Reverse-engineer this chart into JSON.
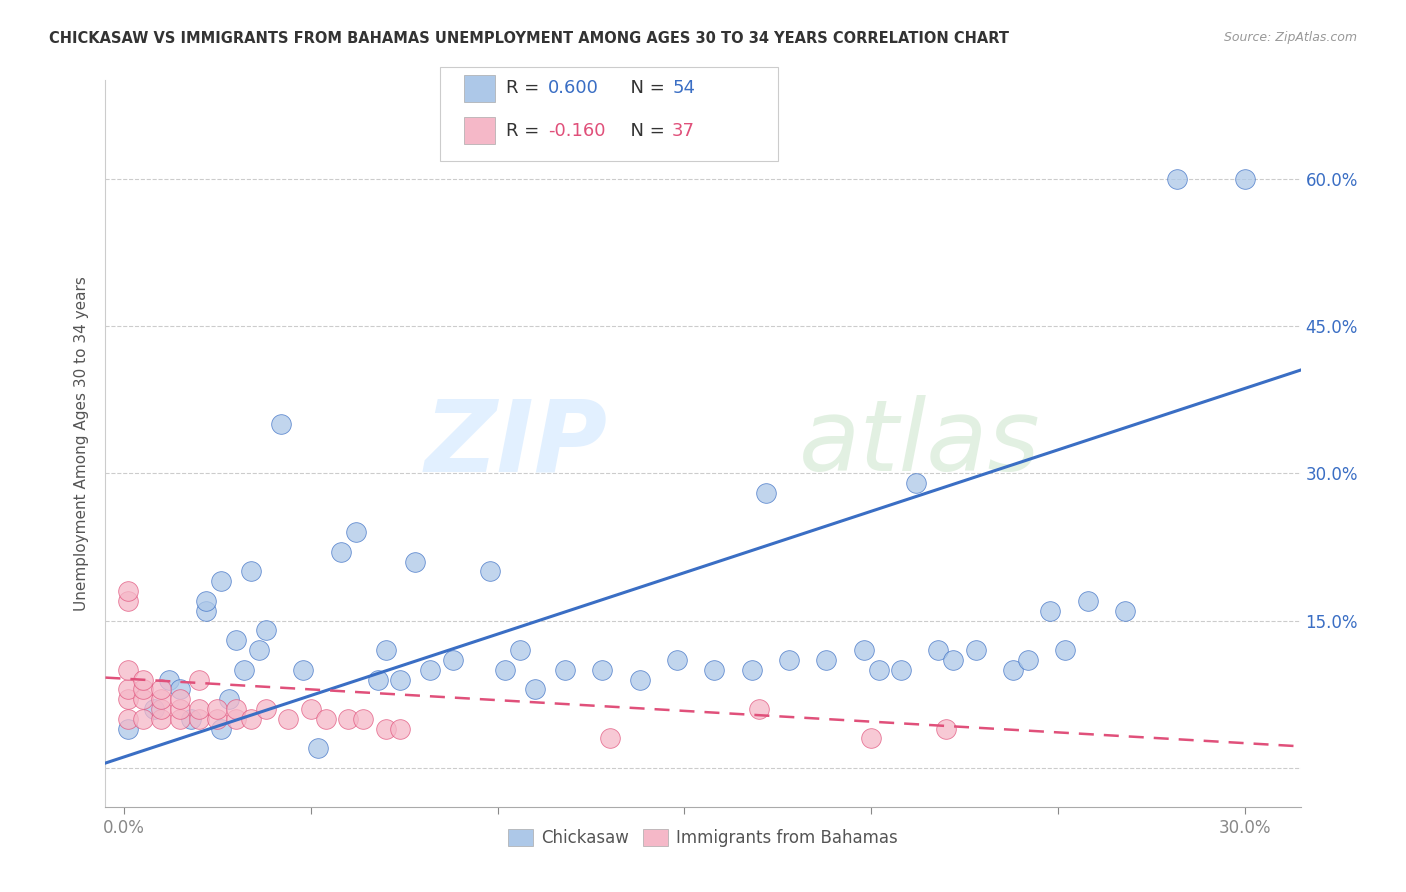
{
  "title": "CHICKASAW VS IMMIGRANTS FROM BAHAMAS UNEMPLOYMENT AMONG AGES 30 TO 34 YEARS CORRELATION CHART",
  "source": "Source: ZipAtlas.com",
  "ylabel": "Unemployment Among Ages 30 to 34 years",
  "xlim": [
    -0.005,
    0.315
  ],
  "ylim": [
    -0.04,
    0.7
  ],
  "blue_R": "0.600",
  "blue_N": "54",
  "pink_R": "-0.160",
  "pink_N": "37",
  "blue_color": "#adc8e8",
  "pink_color": "#f5b8c8",
  "blue_line_color": "#3a6ec4",
  "pink_line_color": "#e0507a",
  "legend_blue_label": "Chickasaw",
  "legend_pink_label": "Immigrants from Bahamas",
  "blue_scatter_x": [
    0.001,
    0.008,
    0.012,
    0.015,
    0.018,
    0.022,
    0.022,
    0.026,
    0.026,
    0.028,
    0.03,
    0.032,
    0.034,
    0.036,
    0.038,
    0.042,
    0.048,
    0.052,
    0.058,
    0.062,
    0.068,
    0.07,
    0.074,
    0.078,
    0.082,
    0.088,
    0.098,
    0.102,
    0.106,
    0.11,
    0.118,
    0.128,
    0.138,
    0.148,
    0.158,
    0.168,
    0.172,
    0.178,
    0.188,
    0.198,
    0.202,
    0.208,
    0.212,
    0.218,
    0.222,
    0.228,
    0.238,
    0.242,
    0.248,
    0.252,
    0.258,
    0.268,
    0.282,
    0.3
  ],
  "blue_scatter_y": [
    0.04,
    0.06,
    0.09,
    0.08,
    0.05,
    0.16,
    0.17,
    0.19,
    0.04,
    0.07,
    0.13,
    0.1,
    0.2,
    0.12,
    0.14,
    0.35,
    0.1,
    0.02,
    0.22,
    0.24,
    0.09,
    0.12,
    0.09,
    0.21,
    0.1,
    0.11,
    0.2,
    0.1,
    0.12,
    0.08,
    0.1,
    0.1,
    0.09,
    0.11,
    0.1,
    0.1,
    0.28,
    0.11,
    0.11,
    0.12,
    0.1,
    0.1,
    0.29,
    0.12,
    0.11,
    0.12,
    0.1,
    0.11,
    0.16,
    0.12,
    0.17,
    0.16,
    0.6,
    0.6
  ],
  "pink_scatter_x": [
    0.001,
    0.001,
    0.001,
    0.001,
    0.001,
    0.001,
    0.005,
    0.005,
    0.005,
    0.005,
    0.01,
    0.01,
    0.01,
    0.01,
    0.015,
    0.015,
    0.015,
    0.02,
    0.02,
    0.02,
    0.025,
    0.025,
    0.03,
    0.03,
    0.034,
    0.038,
    0.044,
    0.05,
    0.054,
    0.06,
    0.064,
    0.07,
    0.074,
    0.13,
    0.17,
    0.2,
    0.22
  ],
  "pink_scatter_y": [
    0.05,
    0.07,
    0.08,
    0.1,
    0.17,
    0.18,
    0.05,
    0.07,
    0.08,
    0.09,
    0.05,
    0.06,
    0.07,
    0.08,
    0.05,
    0.06,
    0.07,
    0.05,
    0.06,
    0.09,
    0.05,
    0.06,
    0.05,
    0.06,
    0.05,
    0.06,
    0.05,
    0.06,
    0.05,
    0.05,
    0.05,
    0.04,
    0.04,
    0.03,
    0.06,
    0.03,
    0.04
  ],
  "blue_line_x": [
    -0.005,
    0.315
  ],
  "blue_line_y": [
    0.005,
    0.405
  ],
  "pink_line_x": [
    -0.005,
    0.315
  ],
  "pink_line_y": [
    0.092,
    0.022
  ],
  "y_tick_positions": [
    0.0,
    0.15,
    0.3,
    0.45,
    0.6
  ],
  "y_tick_labels_right": [
    "",
    "15.0%",
    "30.0%",
    "45.0%",
    "60.0%"
  ],
  "x_tick_positions": [
    0.0,
    0.05,
    0.1,
    0.15,
    0.2,
    0.25,
    0.3
  ],
  "x_tick_labels_show": [
    "0.0%",
    "",
    "",
    "",
    "",
    "",
    "30.0%"
  ]
}
